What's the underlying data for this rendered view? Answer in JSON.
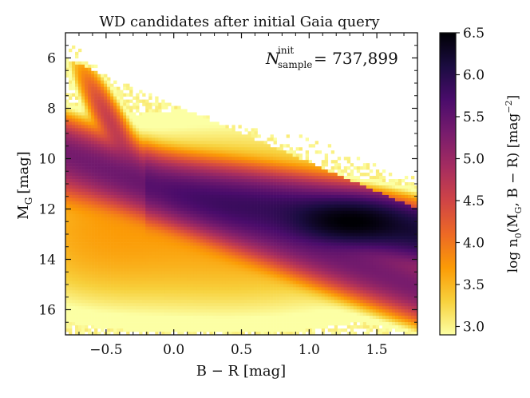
{
  "chart_data": {
    "type": "heatmap",
    "title": "WD candidates after initial Gaia query",
    "xlabel": "B − R [mag]",
    "ylabel": "M",
    "ylabel_sub": "G",
    "ylabel_unit": "[mag]",
    "xlim": [
      -0.8,
      1.8
    ],
    "ylim": [
      17.0,
      5.0
    ],
    "x_ticks": [
      -0.5,
      0.0,
      0.5,
      1.0,
      1.5
    ],
    "x_tick_labels": [
      "−0.5",
      "0.0",
      "0.5",
      "1.0",
      "1.5"
    ],
    "y_ticks": [
      6,
      8,
      10,
      12,
      14,
      16
    ],
    "y_tick_labels": [
      "6",
      "8",
      "10",
      "12",
      "14",
      "16"
    ],
    "annotation": {
      "symbol": "N",
      "sup": "init",
      "sub": "sample",
      "value_text": "= 737,899",
      "value": 737899
    },
    "colorbar": {
      "label": "log n₀(M, B − R) [mag⁻²]",
      "label_parts": [
        "log n",
        "0",
        "(M",
        "G",
        ", B − R) [mag",
        "−2",
        "]"
      ],
      "range": [
        2.9,
        6.5
      ],
      "ticks": [
        3.0,
        3.5,
        4.0,
        4.5,
        5.0,
        5.5,
        6.0,
        6.5
      ],
      "tick_labels": [
        "3.0",
        "3.5",
        "4.0",
        "4.5",
        "5.0",
        "5.5",
        "6.0",
        "6.5"
      ],
      "colormap": "inferno_r",
      "colors": [
        "#fcffa4",
        "#f7d13d",
        "#fb9b06",
        "#ed6925",
        "#cf4446",
        "#a52c60",
        "#781c6d",
        "#4a0c6b",
        "#1b0c41",
        "#000004"
      ]
    },
    "density_features": [
      {
        "name": "white dwarf cooling sequence",
        "from": [
          -0.45,
          10.2
        ],
        "to": [
          1.8,
          15.3
        ],
        "peak_log_density": 5.4
      },
      {
        "name": "main sequence / binary locus",
        "from": [
          -0.1,
          11.3
        ],
        "to": [
          1.8,
          13.2
        ],
        "peak_log_density": 6.2
      },
      {
        "name": "dense clump",
        "at": [
          1.3,
          12.5
        ],
        "peak_log_density": 6.3
      },
      {
        "name": "blue spur",
        "from": [
          -0.6,
          7.5
        ],
        "to": [
          -0.3,
          10.0
        ],
        "peak_log_density": 4.5
      }
    ]
  }
}
